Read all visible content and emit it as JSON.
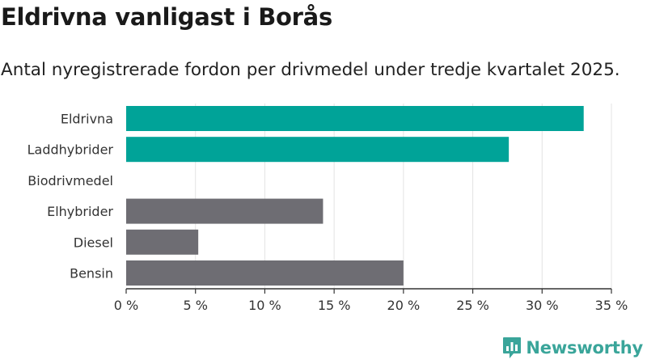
{
  "chart_data": {
    "type": "bar",
    "orientation": "horizontal",
    "title": "Eldrivna vanligast i Borås",
    "subtitle": "Antal nyregistrerade fordon per drivmedel under tredje kvartalet 2025.",
    "categories": [
      "Eldrivna",
      "Laddhybrider",
      "Biodrivmedel",
      "Elhybrider",
      "Diesel",
      "Bensin"
    ],
    "values": [
      33.0,
      27.6,
      0,
      14.2,
      5.2,
      20.0
    ],
    "colors": [
      "#00a398",
      "#00a398",
      "#00a398",
      "#6e6d73",
      "#6e6d73",
      "#6e6d73"
    ],
    "xlim": [
      0,
      35
    ],
    "xticks": [
      0,
      5,
      10,
      15,
      20,
      25,
      30,
      35
    ],
    "xtick_labels": [
      "0 %",
      "5 %",
      "10 %",
      "15 %",
      "20 %",
      "25 %",
      "30 %",
      "35 %"
    ],
    "xlabel": "",
    "ylabel": "",
    "grid": "vertical"
  },
  "branding": {
    "logo_text": "Newsworthy",
    "logo_icon": "newsworthy-logo-icon",
    "logo_color": "#3aa59a"
  }
}
